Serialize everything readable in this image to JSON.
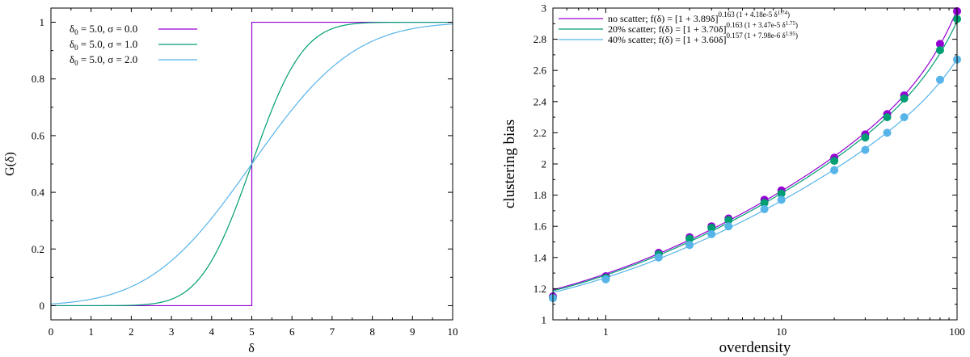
{
  "colors": {
    "purple": "#9400d3",
    "green": "#009e73",
    "blue": "#56b4e9",
    "axis": "#000000"
  },
  "chart_data": [
    {
      "type": "line",
      "xlabel": "δ",
      "ylabel": "G(δ)",
      "xlim": [
        0,
        10
      ],
      "ylim": [
        -0.05,
        1.05
      ],
      "xticks": [
        0,
        1,
        2,
        3,
        4,
        5,
        6,
        7,
        8,
        9,
        10
      ],
      "yticks": [
        0,
        0.2,
        0.4,
        0.6,
        0.8,
        1
      ],
      "xtick_labels": [
        "0",
        "1",
        "2",
        "3",
        "4",
        "5",
        "6",
        "7",
        "8",
        "9",
        "10"
      ],
      "ytick_labels": [
        "0",
        "0.2",
        "0.4",
        "0.6",
        "0.8",
        "1"
      ],
      "legend_position": "top-left",
      "series": [
        {
          "name": "δ0 = 5.0, σ = 0.0",
          "legend_main": "δ",
          "legend_sub": "0",
          "legend_rest": " = 5.0, σ = 0.0",
          "delta0": 5.0,
          "sigma": 0.0,
          "color_key": "purple"
        },
        {
          "name": "δ0 = 5.0, σ = 1.0",
          "legend_main": "δ",
          "legend_sub": "0",
          "legend_rest": " = 5.0, σ = 1.0",
          "delta0": 5.0,
          "sigma": 1.0,
          "color_key": "green"
        },
        {
          "name": "δ0 = 5.0, σ = 2.0",
          "legend_main": "δ",
          "legend_sub": "0",
          "legend_rest": " = 5.0, σ = 2.0",
          "delta0": 5.0,
          "sigma": 2.0,
          "color_key": "blue"
        }
      ]
    },
    {
      "type": "scatter",
      "xlabel": "overdensity",
      "ylabel": "clustering bias",
      "xscale": "log",
      "xlim": [
        0.5,
        100
      ],
      "ylim": [
        1,
        3
      ],
      "xticks": [
        1,
        10,
        100
      ],
      "xtick_labels": [
        "1",
        "10",
        "100"
      ],
      "yticks": [
        1,
        1.2,
        1.4,
        1.6,
        1.8,
        2,
        2.2,
        2.4,
        2.6,
        2.8,
        3
      ],
      "ytick_labels": [
        "1",
        "1.2",
        "1.4",
        "1.6",
        "1.8",
        "2",
        "2.2",
        "2.4",
        "2.6",
        "2.8",
        "3"
      ],
      "legend_position": "top",
      "x": [
        0.5,
        1,
        2,
        3,
        4,
        5,
        8,
        10,
        20,
        30,
        40,
        50,
        80,
        100
      ],
      "series": [
        {
          "name": "no scatter",
          "color_key": "purple",
          "legend_pre": "no scatter; f(δ) = [1 + 3.89δ]",
          "legend_sup1": "0.163 (1 + 4.18e-5 δ",
          "legend_sup2": "1.74",
          "legend_sup3": ")",
          "fit": {
            "a": 3.89,
            "b": 0.163,
            "c": 4.18e-05,
            "d": 1.74
          },
          "values": [
            1.15,
            1.28,
            1.43,
            1.53,
            1.6,
            1.65,
            1.77,
            1.83,
            2.04,
            2.19,
            2.32,
            2.44,
            2.77,
            2.98
          ]
        },
        {
          "name": "20% scatter",
          "color_key": "green",
          "legend_pre": "20% scatter; f(δ) = [1 + 3.70δ]",
          "legend_sup1": "0.163 (1 + 3.47e-5 δ",
          "legend_sup2": "1.75",
          "legend_sup3": ")",
          "fit": {
            "a": 3.7,
            "b": 0.163,
            "c": 3.47e-05,
            "d": 1.75
          },
          "values": [
            1.14,
            1.27,
            1.42,
            1.52,
            1.59,
            1.64,
            1.75,
            1.81,
            2.02,
            2.17,
            2.3,
            2.42,
            2.73,
            2.93
          ]
        },
        {
          "name": "40% scatter",
          "color_key": "blue",
          "legend_pre": "40% scatter; f(δ) = [1 + 3.60δ]",
          "legend_sup1": "0.157 (1 + 7.98e-6 δ",
          "legend_sup2": "1.95",
          "legend_sup3": ")",
          "fit": {
            "a": 3.6,
            "b": 0.157,
            "c": 7.98e-06,
            "d": 1.95
          },
          "values": [
            1.14,
            1.26,
            1.4,
            1.48,
            1.55,
            1.6,
            1.71,
            1.77,
            1.96,
            2.09,
            2.2,
            2.3,
            2.54,
            2.67
          ]
        }
      ]
    }
  ]
}
